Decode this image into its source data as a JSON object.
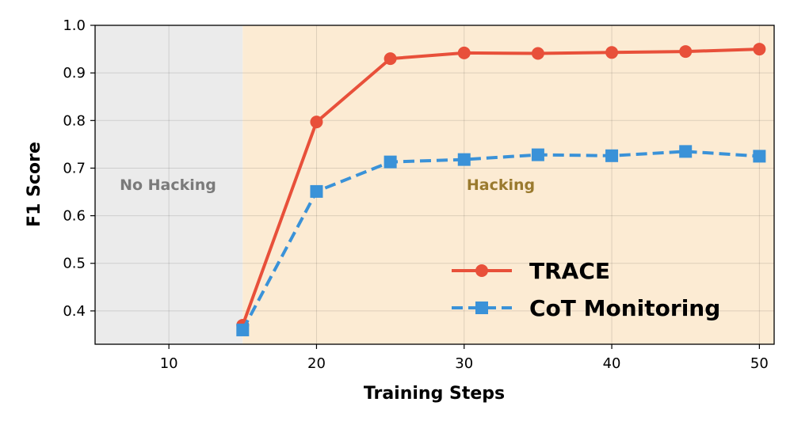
{
  "chart_data": {
    "type": "line",
    "xlabel": "Training Steps",
    "ylabel": "F1 Score",
    "xlim": [
      5,
      51
    ],
    "ylim": [
      0.33,
      1.0
    ],
    "xticks": [
      10,
      20,
      30,
      40,
      50
    ],
    "yticks": [
      0.4,
      0.5,
      0.6,
      0.7,
      0.8,
      0.9,
      1.0
    ],
    "ytick_labels": [
      "0.4",
      "0.5",
      "0.6",
      "0.7",
      "0.8",
      "0.9",
      "1.0"
    ],
    "grid": true,
    "legend_position": "lower-right",
    "regions": [
      {
        "label": "No Hacking",
        "x_start": 5,
        "x_end": 15,
        "color": "#ebebeb",
        "label_color": "#7a7a7a"
      },
      {
        "label": "Hacking",
        "x_start": 15,
        "x_end": 51,
        "color": "#fcebd3",
        "label_color": "#9a7a2e"
      }
    ],
    "series": [
      {
        "name": "TRACE",
        "color": "#e8503a",
        "marker": "circle",
        "line_style": "solid",
        "x": [
          15,
          20,
          25,
          30,
          35,
          40,
          45,
          50
        ],
        "y": [
          0.37,
          0.797,
          0.93,
          0.942,
          0.941,
          0.943,
          0.945,
          0.95
        ]
      },
      {
        "name": "CoT Monitoring",
        "color": "#3a92d8",
        "marker": "square",
        "line_style": "dashed",
        "x": [
          15,
          20,
          25,
          30,
          35,
          40,
          45,
          50
        ],
        "y": [
          0.36,
          0.651,
          0.713,
          0.718,
          0.728,
          0.726,
          0.735,
          0.725
        ]
      }
    ]
  }
}
